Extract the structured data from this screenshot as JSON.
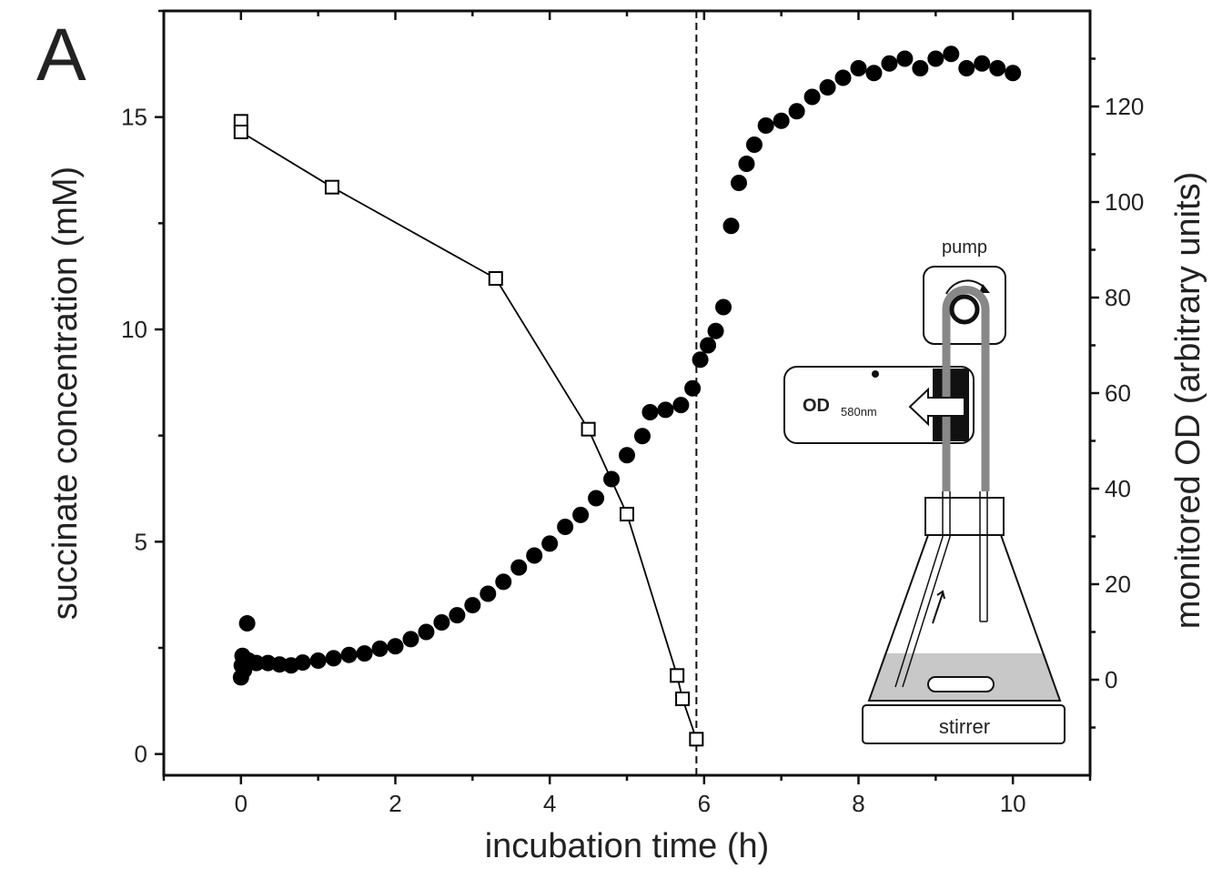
{
  "chart_data": {
    "type": "line",
    "panel_label": "A",
    "x_label": "incubation time (h)",
    "y_label": "succinate concentration (mM)",
    "y2_label": "monitored OD (arbitrary units)",
    "xlim": [
      -1,
      11
    ],
    "ylim": [
      -0.5,
      17.5
    ],
    "y2lim": [
      -20,
      140
    ],
    "xticks": [
      0,
      2,
      4,
      6,
      8,
      10
    ],
    "xminorticks": [
      -1,
      1,
      3,
      5,
      7,
      9,
      11
    ],
    "yticks": [
      0,
      5,
      10,
      15
    ],
    "yminorticks": [
      2.5,
      7.5,
      12.5,
      17.5
    ],
    "y2ticks": [
      0,
      20,
      40,
      60,
      80,
      100,
      120
    ],
    "y2minorticks": [
      -10,
      10,
      30,
      50,
      70,
      90,
      110,
      130
    ],
    "vline": 5.9,
    "series": [
      {
        "marker": "square-open",
        "connect": true,
        "color": "#000000",
        "axis": "y",
        "x": [
          0,
          0,
          1.18,
          3.3,
          4.5,
          5.0,
          5.65,
          5.72,
          5.9
        ],
        "values": [
          14.9,
          14.65,
          13.35,
          11.2,
          7.65,
          5.65,
          1.85,
          1.3,
          0.35
        ]
      },
      {
        "marker": "circle",
        "connect": false,
        "color": "#000000",
        "axis": "y2",
        "x": [
          0,
          0.01,
          0.02,
          0.04,
          0.08,
          0.1,
          0.2,
          0.35,
          0.5,
          0.65,
          0.8,
          1,
          1.2,
          1.4,
          1.6,
          1.8,
          2,
          2.2,
          2.4,
          2.6,
          2.8,
          3,
          3.2,
          3.4,
          3.6,
          3.8,
          4,
          4.2,
          4.4,
          4.6,
          4.8,
          5,
          5.2,
          5.3,
          5.5,
          5.7,
          5.85,
          5.95,
          6.05,
          6.15,
          6.25,
          6.35,
          6.45,
          6.55,
          6.65,
          6.8,
          7,
          7.2,
          7.4,
          7.6,
          7.8,
          8,
          8.2,
          8.4,
          8.6,
          8.8,
          9,
          9.2,
          9.4,
          9.6,
          9.8,
          10
        ],
        "values": [
          0.5,
          3,
          5,
          2,
          11.8,
          4,
          3.5,
          3.5,
          3.2,
          3,
          3.6,
          4,
          4.5,
          5.2,
          5.5,
          6.5,
          7,
          8.5,
          10,
          12,
          13.5,
          15.6,
          18,
          20.5,
          23.5,
          26,
          28.5,
          32,
          34.5,
          38,
          42,
          47,
          51,
          56,
          56.5,
          57.5,
          61,
          67,
          70,
          73,
          78,
          95,
          104,
          108,
          112,
          116,
          117,
          119,
          122,
          124,
          126,
          128,
          127,
          129,
          130,
          128,
          130,
          131,
          128,
          129,
          128,
          127
        ]
      }
    ],
    "inset": {
      "pump": "pump",
      "od": "OD",
      "wavelength": "580nm",
      "stirrer": "stirrer"
    }
  }
}
